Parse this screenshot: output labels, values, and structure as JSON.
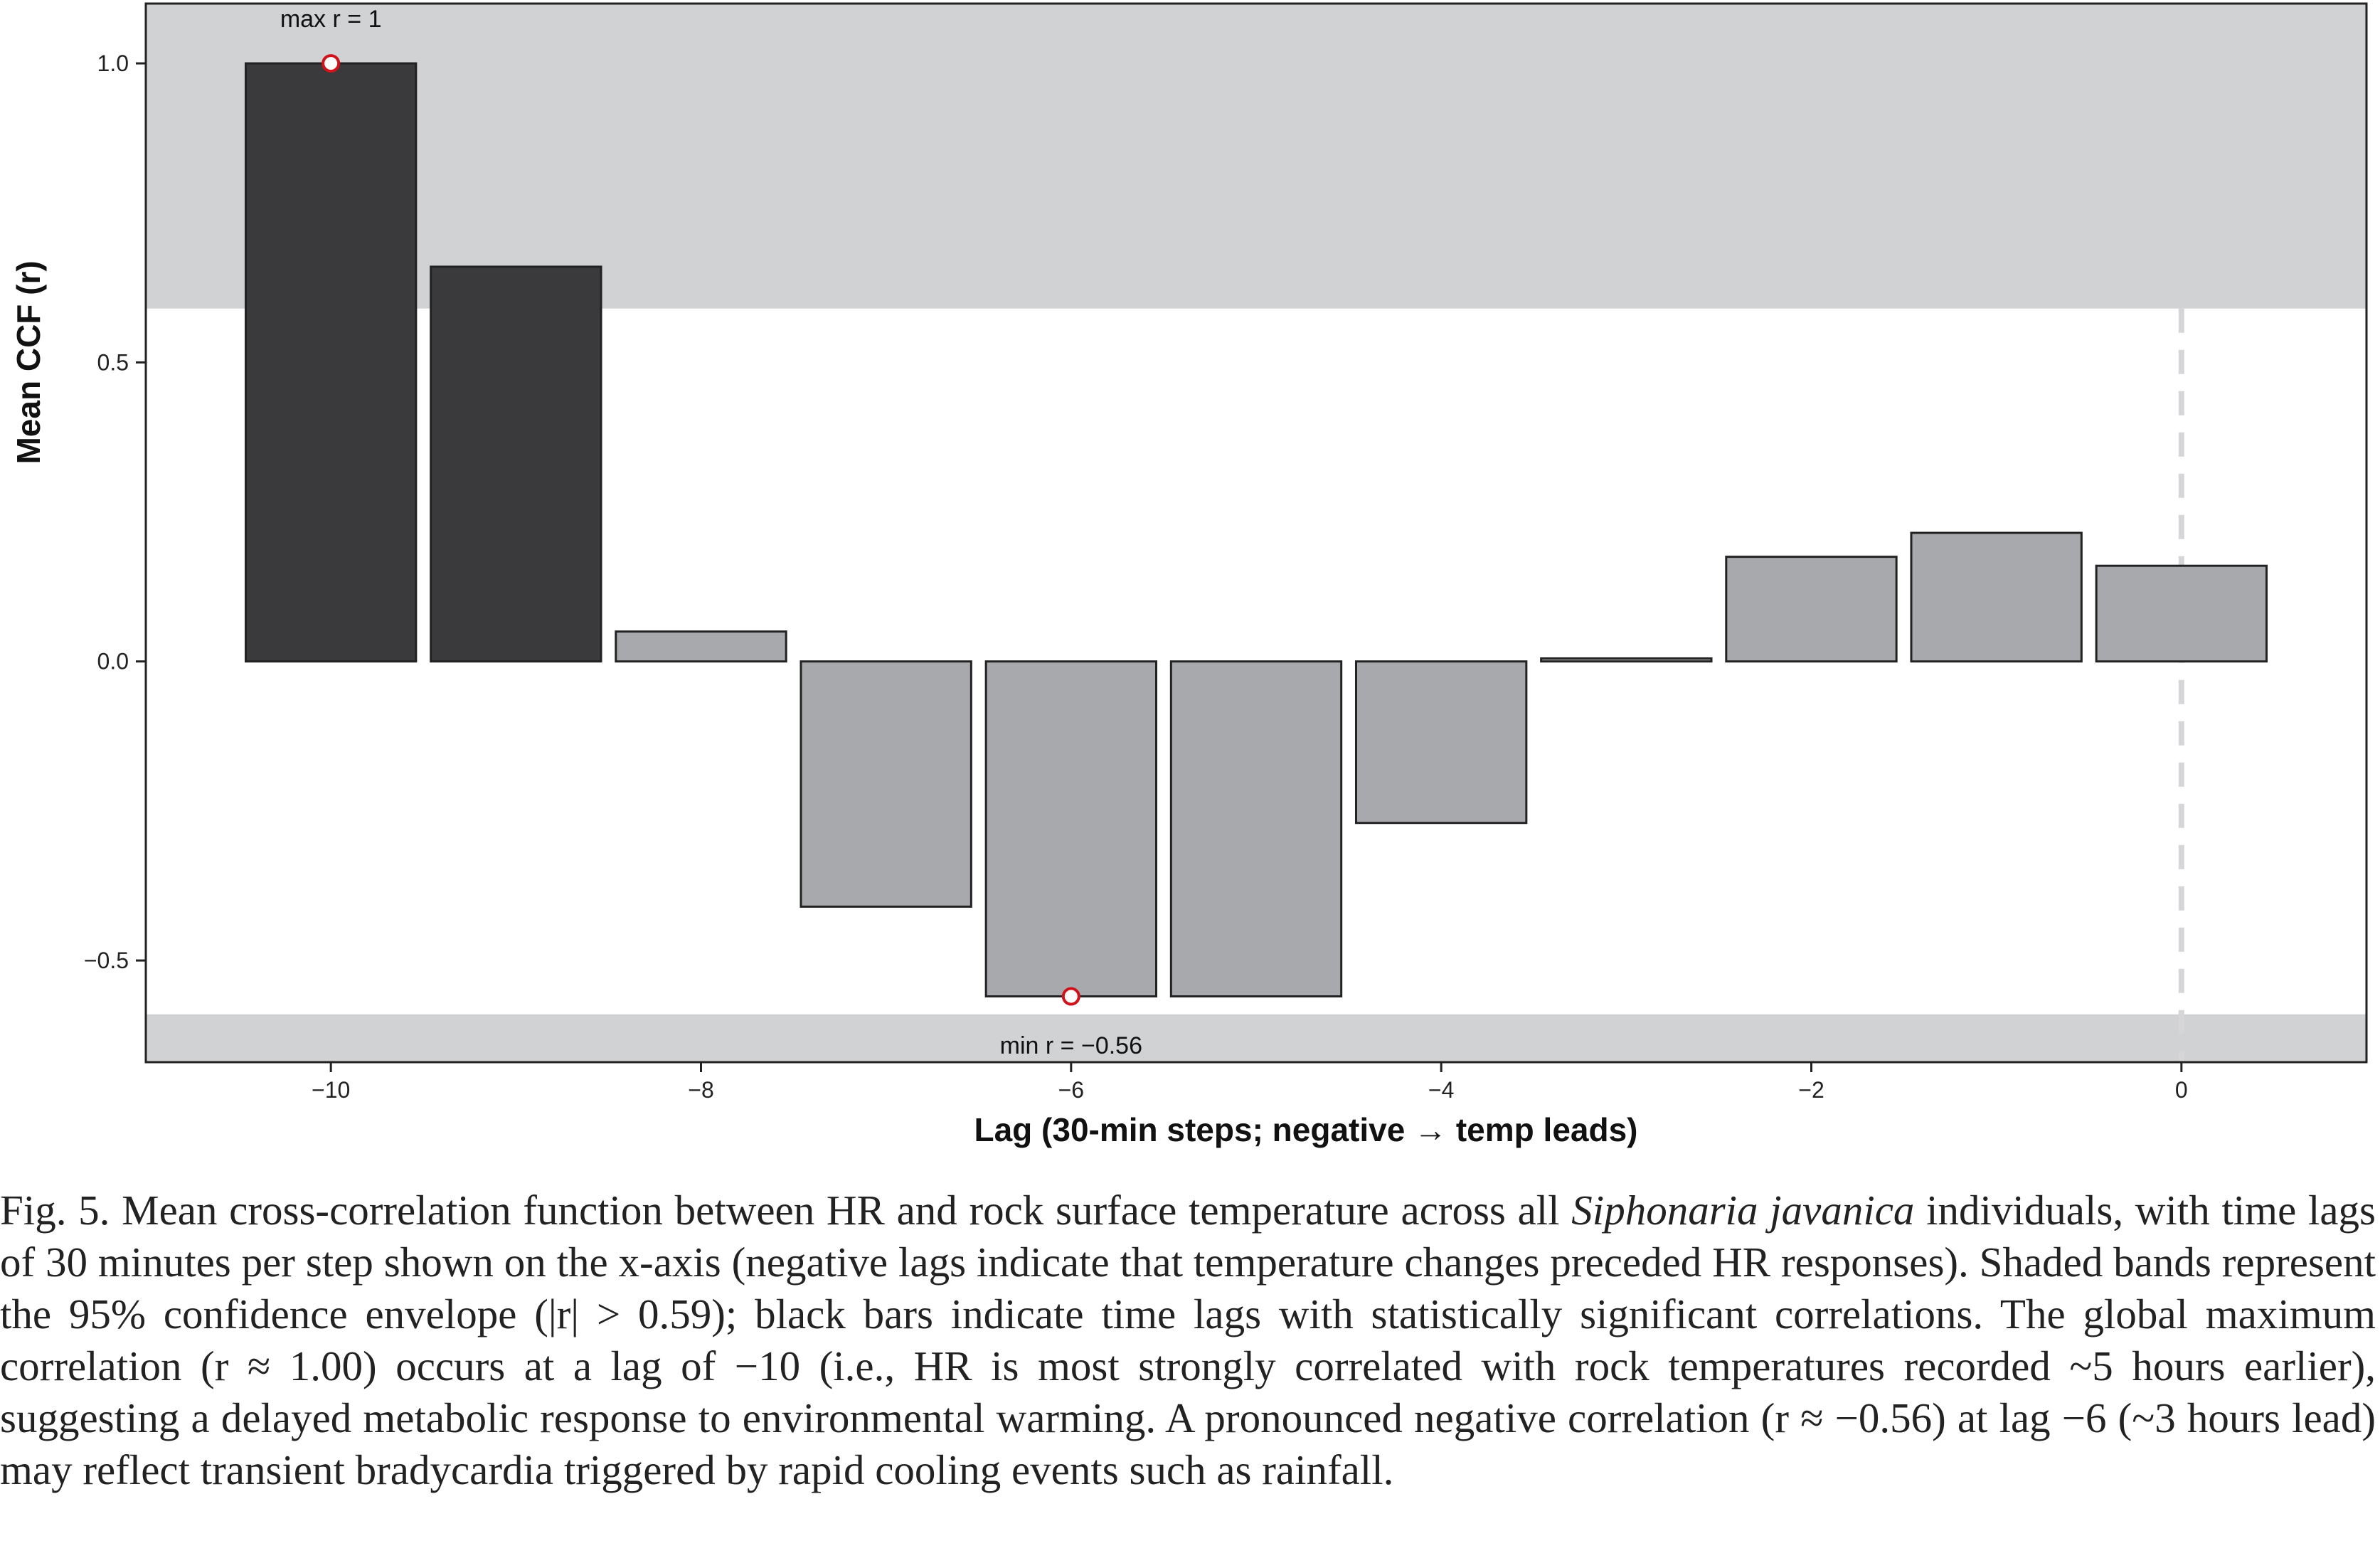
{
  "chart_data": {
    "type": "bar",
    "xlabel": "Lag (30-min steps; negative → temp leads)",
    "ylabel": "Mean CCF (r)",
    "x": [
      -10,
      -9,
      -8,
      -7,
      -6,
      -5,
      -4,
      -3,
      -2,
      -1,
      0
    ],
    "values": [
      1.0,
      0.66,
      0.05,
      -0.41,
      -0.56,
      -0.56,
      -0.27,
      0.005,
      0.175,
      0.215,
      0.16
    ],
    "significant": [
      true,
      true,
      false,
      false,
      false,
      false,
      false,
      false,
      false,
      false,
      false
    ],
    "xlim": [
      -11,
      1
    ],
    "ylim": [
      -0.67,
      1.1
    ],
    "xticks": [
      -10,
      -8,
      -6,
      -4,
      -2,
      0
    ],
    "xtick_labels": [
      "−10",
      "−8",
      "−6",
      "−4",
      "−2",
      "0"
    ],
    "yticks": [
      -0.5,
      0.0,
      0.5,
      1.0
    ],
    "ytick_labels": [
      "−0.5",
      "0.0",
      "0.5",
      "1.0"
    ],
    "confidence_threshold": 0.59,
    "reference_line_x": 0,
    "annotations": {
      "max": {
        "text": "max r = 1",
        "x": -10,
        "y": 1.0
      },
      "min": {
        "text": "min r = −0.56",
        "x": -6,
        "y": -0.56
      }
    },
    "colors": {
      "significant_bar": "#3a3a3c",
      "bar": "#a8a9ad",
      "band": "#d1d2d4",
      "marker_edge": "#d0121b",
      "ref_line": "#d6d6d8"
    }
  },
  "caption": {
    "part1": "Fig. 5. Mean cross-correlation function between HR and rock surface temperature across all ",
    "species": "Siphonaria javanica",
    "part2": " individuals, with time lags of 30 minutes per step shown on the x-axis (negative lags indicate that temperature changes preceded HR responses). Shaded bands represent the 95% confidence envelope (|r| > 0.59); black bars indicate time lags with statistically significant correlations. The global maximum correlation (r ≈ 1.00) occurs at a lag of −10 (i.e., HR is most strongly correlated with rock temperatures recorded ~5 hours earlier), suggesting a delayed metabolic response to environmental warming. A pronounced negative correlation (r ≈ −0.56) at lag −6 (~3 hours lead) may reflect transient bradycardia triggered by rapid cooling events such as rainfall."
  }
}
